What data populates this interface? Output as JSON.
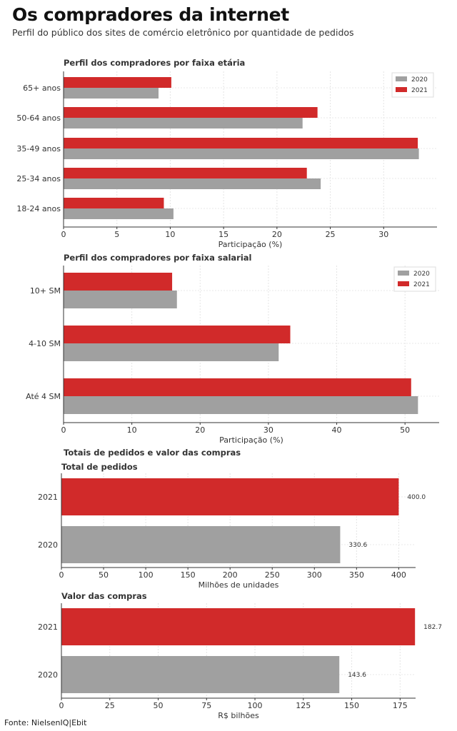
{
  "header": {
    "title": "Os compradores da internet",
    "subtitle": "Perfil do público dos sites de comércio eletrônico por quantidade de pedidos"
  },
  "section_title": "Totais de pedidos e valor das compras",
  "source": "Fonte: NielsenIQ|Ebit",
  "colors": {
    "2020": "#a0a0a0",
    "2021": "#d12a2a"
  },
  "chart_data": [
    {
      "type": "bar",
      "orientation": "horizontal",
      "title": "Perfil dos compradores por faixa etária",
      "categories": [
        "65+ anos",
        "50-64 anos",
        "35-49 anos",
        "25-34 anos",
        "18-24 anos"
      ],
      "series": [
        {
          "name": "2020",
          "values": [
            8.9,
            22.4,
            33.3,
            24.1,
            10.3
          ]
        },
        {
          "name": "2021",
          "values": [
            10.1,
            23.8,
            33.2,
            22.8,
            9.4
          ]
        }
      ],
      "xlabel": "Participação (%)",
      "xticks": [
        0,
        5,
        10,
        15,
        20,
        25,
        30
      ],
      "xlim": [
        0,
        35
      ],
      "legend": [
        "2020",
        "2021"
      ],
      "legend_position": "top-right",
      "grid": true
    },
    {
      "type": "bar",
      "orientation": "horizontal",
      "title": "Perfil dos compradores por faixa salarial",
      "categories": [
        "10+ SM",
        "4-10 SM",
        "Até 4 SM"
      ],
      "series": [
        {
          "name": "2020",
          "values": [
            16.6,
            31.5,
            51.9
          ]
        },
        {
          "name": "2021",
          "values": [
            15.9,
            33.2,
            50.9
          ]
        }
      ],
      "xlabel": "Participação (%)",
      "xticks": [
        0,
        10,
        20,
        30,
        40,
        50
      ],
      "xlim": [
        0,
        55
      ],
      "legend": [
        "2020",
        "2021"
      ],
      "legend_position": "top-right",
      "grid": true
    },
    {
      "type": "bar",
      "orientation": "horizontal",
      "title": "Total de pedidos",
      "categories": [
        "2021",
        "2020"
      ],
      "values": [
        400.0,
        330.6
      ],
      "data_labels": [
        "400.0",
        "330.6"
      ],
      "xlabel": "Milhões de unidades",
      "xticks": [
        0,
        50,
        100,
        150,
        200,
        250,
        300,
        350,
        400
      ],
      "xlim": [
        0,
        420
      ],
      "grid": true
    },
    {
      "type": "bar",
      "orientation": "horizontal",
      "title": "Valor das compras",
      "categories": [
        "2021",
        "2020"
      ],
      "values": [
        182.7,
        143.6
      ],
      "data_labels": [
        "182.7",
        "143.6"
      ],
      "xlabel": "R$ bilhões",
      "xticks": [
        0,
        25,
        50,
        75,
        100,
        125,
        150,
        175
      ],
      "xlim": [
        0,
        183
      ],
      "grid": true
    }
  ]
}
